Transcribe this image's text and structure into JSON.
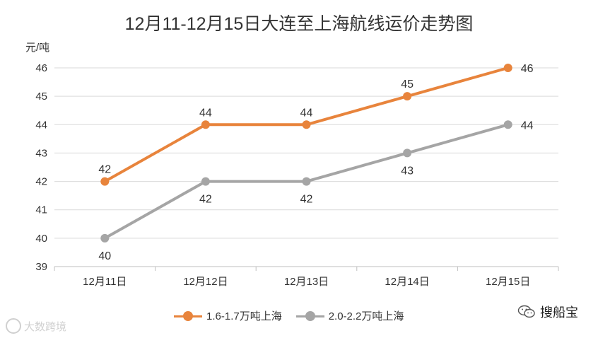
{
  "title": "12月11-12月15日大连至上海航线运价走势图",
  "unit_label": "元/吨",
  "colors": {
    "series1": "#E8843C",
    "series2": "#A5A5A5",
    "grid": "#D9D9D9",
    "text": "#333333"
  },
  "chart_data": {
    "type": "line",
    "title": "12月11-12月15日大连至上海航线运价走势图",
    "ylabel": "元/吨",
    "xlabel": "",
    "categories": [
      "12月11日",
      "12月12日",
      "12月13日",
      "12月14日",
      "12月15日"
    ],
    "ylim": [
      39,
      46
    ],
    "yticks": [
      39,
      40,
      41,
      42,
      43,
      44,
      45,
      46
    ],
    "grid": true,
    "legend_position": "bottom",
    "series": [
      {
        "name": "1.6-1.7万吨上海",
        "values": [
          42,
          44,
          44,
          45,
          46
        ],
        "color": "#E8843C"
      },
      {
        "name": "2.0-2.2万吨上海",
        "values": [
          40,
          42,
          42,
          43,
          44
        ],
        "color": "#A5A5A5"
      }
    ]
  },
  "watermark_left": "大数跨境",
  "watermark_right": "搜船宝",
  "wechat_icon": "wechat-icon"
}
